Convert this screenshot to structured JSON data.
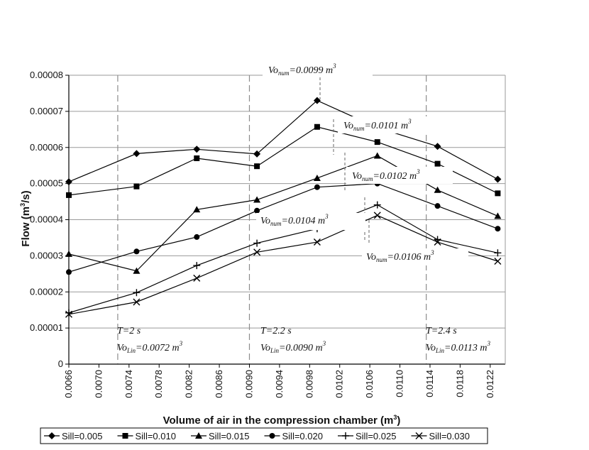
{
  "chart_data": {
    "type": "line",
    "xlabel": "Volume of air in the compression chamber (m",
    "xlabel_sup": "3",
    "xlabel_end": ")",
    "ylabel": "Flow (m",
    "ylabel_sup": "3",
    "ylabel_end": "/s)",
    "xlim": [
      0.0066,
      0.0124
    ],
    "ylim": [
      0,
      8e-05
    ],
    "x_ticks": [
      "0.0066",
      "0.0070",
      "0.0074",
      "0.0078",
      "0.0082",
      "0.0086",
      "0.0090",
      "0.0094",
      "0.0098",
      "0.0102",
      "0.0106",
      "0.0110",
      "0.0114",
      "0.0118",
      "0.0122"
    ],
    "y_ticks": [
      "0",
      "0.00001",
      "0.00002",
      "0.00003",
      "0.00004",
      "0.00005",
      "0.00006",
      "0.00007",
      "0.00008"
    ],
    "grid": "horizontal",
    "legend_position": "bottom",
    "x": [
      0.0066,
      0.0075,
      0.0083,
      0.0091,
      0.0099,
      0.0107,
      0.0115,
      0.0123
    ],
    "series": [
      {
        "name": "Sill=0.005",
        "marker": "diamond",
        "values": [
          5.05e-05,
          5.83e-05,
          5.95e-05,
          5.82e-05,
          7.3e-05,
          6.55e-05,
          6.03e-05,
          5.12e-05
        ]
      },
      {
        "name": "Sill=0.010",
        "marker": "square",
        "values": [
          4.68e-05,
          4.92e-05,
          5.7e-05,
          5.48e-05,
          6.57e-05,
          6.15e-05,
          5.55e-05,
          4.73e-05
        ]
      },
      {
        "name": "Sill=0.015",
        "marker": "triangle",
        "values": [
          3.05e-05,
          2.58e-05,
          4.28e-05,
          4.55e-05,
          5.15e-05,
          5.77e-05,
          4.82e-05,
          4.1e-05
        ]
      },
      {
        "name": "Sill=0.020",
        "marker": "circle",
        "values": [
          2.55e-05,
          3.12e-05,
          3.52e-05,
          4.25e-05,
          4.9e-05,
          5e-05,
          4.38e-05,
          3.75e-05
        ]
      },
      {
        "name": "Sill=0.025",
        "marker": "plus",
        "values": [
          1.42e-05,
          1.98e-05,
          2.73e-05,
          3.35e-05,
          3.75e-05,
          4.41e-05,
          3.45e-05,
          3.08e-05
        ]
      },
      {
        "name": "Sill=0.030",
        "marker": "x",
        "values": [
          1.38e-05,
          1.72e-05,
          2.38e-05,
          3.1e-05,
          3.38e-05,
          4.12e-05,
          3.38e-05,
          2.85e-05
        ]
      }
    ],
    "vertical_lines": [
      {
        "x": 0.00725,
        "label_period": "T=2 s",
        "label_prefix": "Vo",
        "label_sub": "Lin",
        "label_value": "=0.0072 m",
        "label_sup": "3"
      },
      {
        "x": 0.009,
        "label_period": "T=2.2 s",
        "label_prefix": "Vo",
        "label_sub": "Lin",
        "label_value": "=0.0090 m",
        "label_sup": "3"
      },
      {
        "x": 0.01135,
        "label_period": "T=2.4 s",
        "label_prefix": "Vo",
        "label_sub": "Lin",
        "label_value": "=0.0113 m",
        "label_sup": "3"
      }
    ],
    "vo_num_annotations": [
      {
        "prefix": "Vo",
        "sub": "num",
        "value": "=0.0099 m",
        "sup": "3"
      },
      {
        "prefix": "Vo",
        "sub": "num",
        "value": "=0.0101 m",
        "sup": "3"
      },
      {
        "prefix": "Vo",
        "sub": "num",
        "value": "=0.0102 m",
        "sup": "3"
      },
      {
        "prefix": "Vo",
        "sub": "num",
        "value": "=0.0104 m",
        "sup": "3"
      },
      {
        "prefix": "Vo",
        "sub": "num",
        "value": "=0.0106 m",
        "sup": "3"
      }
    ],
    "colors": {
      "series": "#000000",
      "grid": "#9a9a9a",
      "vertical_lines": "#8c8c8c"
    }
  }
}
